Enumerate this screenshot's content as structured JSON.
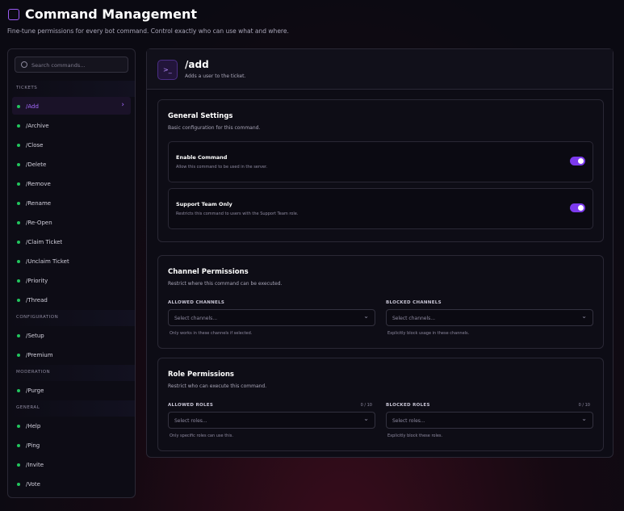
{
  "header": {
    "title": "Command Management",
    "subtitle": "Fine-tune permissions for every bot command. Control exactly who can use what and where."
  },
  "sidebar": {
    "search_placeholder": "Search commands...",
    "groups": [
      {
        "label": "TICKETS",
        "items": [
          "/Add",
          "/Archive",
          "/Close",
          "/Delete",
          "/Remove",
          "/Rename",
          "/Re-Open",
          "/Claim Ticket",
          "/Unclaim Ticket",
          "/Priority",
          "/Thread"
        ]
      },
      {
        "label": "CONFIGURATION",
        "items": [
          "/Setup",
          "/Premium"
        ]
      },
      {
        "label": "MODERATION",
        "items": [
          "/Purge"
        ]
      },
      {
        "label": "GENERAL",
        "items": [
          "/Help",
          "/Ping",
          "/Invite",
          "/Vote"
        ]
      }
    ]
  },
  "command": {
    "name": "/add",
    "description": "Adds a user to the ticket.",
    "sections": [
      {
        "title": "General Settings",
        "description": "Basic configuration for this command.",
        "toggles": [
          {
            "label": "Enable Command",
            "description": "Allow this command to be used in the server."
          },
          {
            "label": "Support Team Only",
            "description": "Restricts this command to users with the Support Team role."
          }
        ]
      },
      {
        "title": "Channel Permissions",
        "description": "Restrict where this command can be executed.",
        "fields": [
          {
            "label": "ALLOWED CHANNELS",
            "placeholder": "Select channels...",
            "hint": "Only works in these channels if selected."
          },
          {
            "label": "BLOCKED CHANNELS",
            "placeholder": "Select channels...",
            "hint": "Explicitly block usage in these channels."
          }
        ]
      },
      {
        "title": "Role Permissions",
        "description": "Restrict who can execute this command.",
        "fields": [
          {
            "label": "ALLOWED ROLES",
            "count": "0 / 10",
            "placeholder": "Select roles...",
            "hint": "Only specific roles can use this."
          },
          {
            "label": "BLOCKED ROLES",
            "count": "0 / 10",
            "placeholder": "Select roles...",
            "hint": "Explicitly block these roles."
          }
        ]
      }
    ]
  }
}
